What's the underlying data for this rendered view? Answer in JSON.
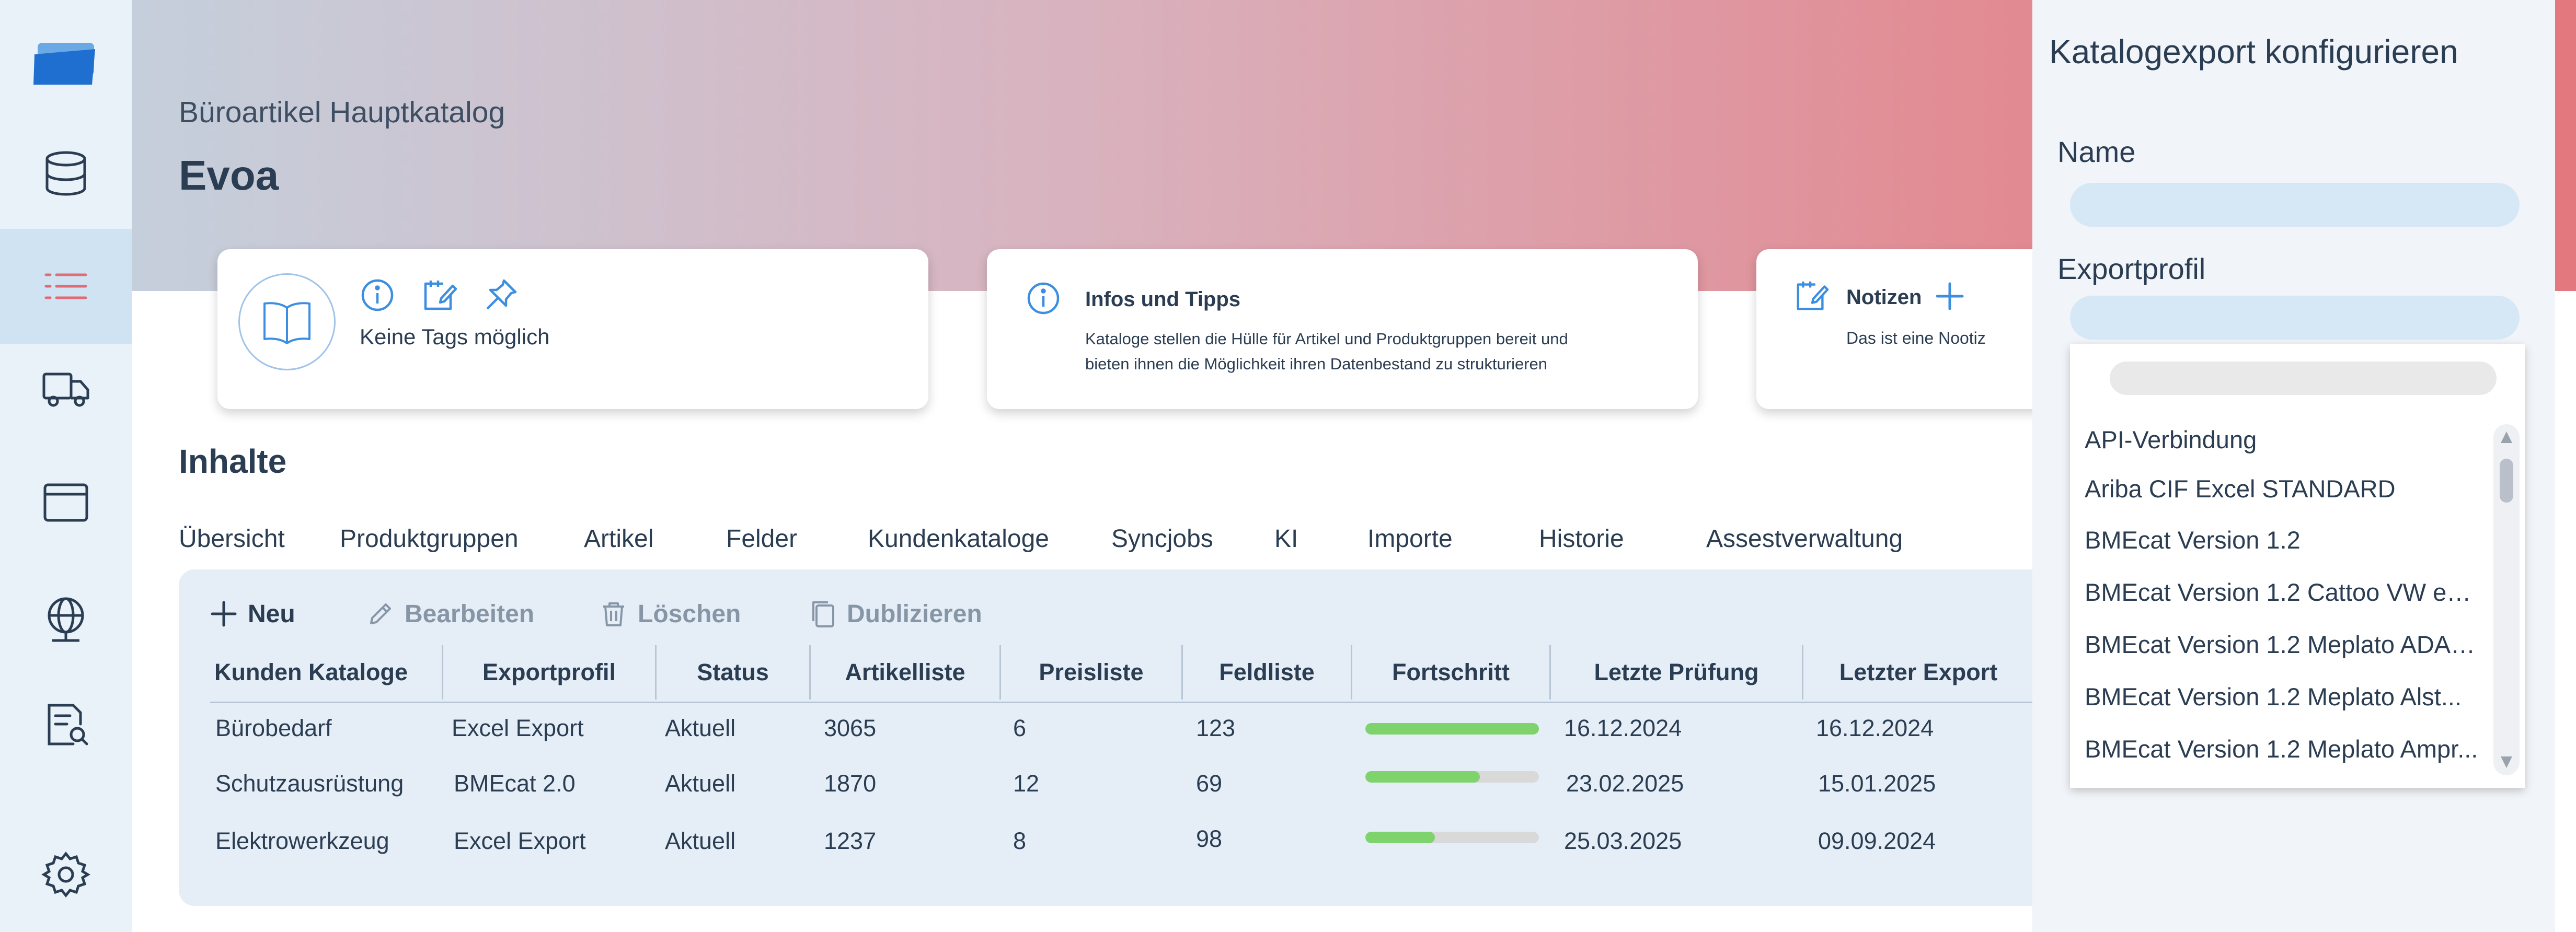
{
  "colors": {
    "accent": "#3c8ee0",
    "active_nav_icon": "#e36b73",
    "sidebar_bg": "#e9f1f9",
    "content_bg": "#e5eef7",
    "progress_fill": "#7ed36c",
    "header_gradient": [
      "#c5cfdc",
      "#e3787f"
    ]
  },
  "sidebar": {
    "items": [
      {
        "icon": "folder-logo-icon"
      },
      {
        "icon": "database-icon"
      },
      {
        "icon": "list-icon",
        "active": true
      },
      {
        "icon": "truck-icon"
      },
      {
        "icon": "browser-window-icon"
      },
      {
        "icon": "globe-icon"
      },
      {
        "icon": "document-search-icon"
      },
      {
        "icon": "gear-icon"
      }
    ]
  },
  "header": {
    "breadcrumb": "Büroartikel Hauptkatalog",
    "title": "Evoa"
  },
  "cards": {
    "tags": {
      "icons": [
        "info-icon",
        "notepad-icon",
        "pin-icon"
      ],
      "text": "Keine Tags möglich"
    },
    "info": {
      "title": "Infos und Tipps",
      "text_line1": "Kataloge stellen die Hülle für Artikel und Produktgruppen bereit und",
      "text_line2": "bieten ihnen die Möglichkeit ihren Datenbestand zu strukturieren"
    },
    "notes": {
      "title": "Notizen",
      "text": "Das ist eine Nootiz"
    }
  },
  "contents": {
    "section_title": "Inhalte",
    "tabs": [
      "Übersicht",
      "Produktgruppen",
      "Artikel",
      "Felder",
      "Kundenkataloge",
      "Syncjobs",
      "KI",
      "Importe",
      "Historie",
      "Assestverwaltung"
    ],
    "toolbar": {
      "new": "Neu",
      "edit": "Bearbeiten",
      "delete": "Löschen",
      "duplicate": "Dublizieren"
    },
    "table": {
      "columns": [
        "Kunden Kataloge",
        "Exportprofil",
        "Status",
        "Artikelliste",
        "Preisliste",
        "Feldliste",
        "Fortschritt",
        "Letzte Prüfung",
        "Letzter Export"
      ],
      "rows": [
        {
          "name": "Bürobedarf",
          "profile": "Excel Export",
          "status": "Aktuell",
          "articles": "3065",
          "prices": "6",
          "fields": "123",
          "progress": 1.0,
          "last_check": "16.12.2024",
          "last_export": "16.12.2024"
        },
        {
          "name": "Schutzausrüstung",
          "profile": "BMEcat 2.0",
          "status": "Aktuell",
          "articles": "1870",
          "prices": "12",
          "fields": "69",
          "progress": 0.66,
          "last_check": "23.02.2025",
          "last_export": "15.01.2025"
        },
        {
          "name": "Elektrowerkzeug",
          "profile": "Excel Export",
          "status": "Aktuell",
          "articles": "1237",
          "prices": "8",
          "fields": "98",
          "progress": 0.4,
          "last_check": "25.03.2025",
          "last_export": "09.09.2024"
        }
      ]
    }
  },
  "panel": {
    "title": "Katalogexport konfigurieren",
    "name_label": "Name",
    "name_value": "",
    "profile_label": "Exportprofil",
    "profile_value": "",
    "dropdown_options": [
      "API-Verbindung",
      "Ariba CIF Excel STANDARD",
      "BMEcat Version 1.2",
      "BMEcat Version 1.2 Cattoo VW eCl...",
      "BMEcat Version 1.2 Meplato ADAC...",
      "BMEcat Version 1.2 Meplato Alst...",
      "BMEcat Version 1.2 Meplato Ampr..."
    ]
  }
}
